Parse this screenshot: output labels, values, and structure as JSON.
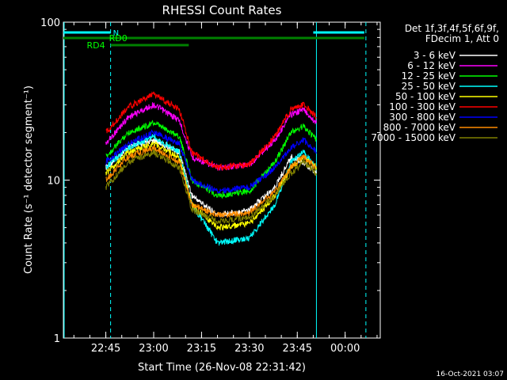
{
  "chart_data": {
    "type": "line",
    "title": "RHESSI Count Rates",
    "xlabel": "Start Time (26-Nov-08 22:31:42)",
    "ylabel": "Count Rate (s⁻¹ detector segment⁻¹)",
    "y_scale": "log",
    "ylim": [
      1,
      100
    ],
    "xlim": [
      "22:31:42",
      "00:11:00"
    ],
    "x_ticks": [
      "22:45",
      "23:00",
      "23:15",
      "23:30",
      "23:45",
      "00:00"
    ],
    "y_ticks": [
      "1",
      "10",
      "100"
    ],
    "legend": {
      "header_line1": "Det 1f,3f,4f,5f,6f,9f,",
      "header_line2": "FDecim 1, Att 0",
      "placement": "right"
    },
    "series": [
      {
        "name": "3 - 6 keV",
        "color": "#ffffff",
        "x": [
          "22:45",
          "22:52",
          "23:00",
          "23:08",
          "23:12",
          "23:20",
          "23:30",
          "23:38",
          "23:43",
          "23:47",
          "23:51"
        ],
        "values": [
          12,
          16,
          18,
          15,
          8,
          6,
          6.5,
          9,
          14,
          13,
          11
        ]
      },
      {
        "name": "6 - 12 keV",
        "color": "#ff00ff",
        "x": [
          "22:45",
          "22:52",
          "23:00",
          "23:08",
          "23:12",
          "23:20",
          "23:30",
          "23:38",
          "23:43",
          "23:47",
          "23:51"
        ],
        "values": [
          17,
          25,
          30,
          24,
          14,
          12,
          12.5,
          18,
          26,
          28,
          23
        ]
      },
      {
        "name": "12 - 25 keV",
        "color": "#00ff00",
        "x": [
          "22:45",
          "22:52",
          "23:00",
          "23:08",
          "23:12",
          "23:20",
          "23:30",
          "23:38",
          "23:43",
          "23:47",
          "23:51"
        ],
        "values": [
          14,
          20,
          23,
          19,
          10,
          8,
          8.5,
          13,
          20,
          22,
          18
        ]
      },
      {
        "name": "25 - 50 keV",
        "color": "#00ffff",
        "x": [
          "22:45",
          "22:52",
          "23:00",
          "23:08",
          "23:12",
          "23:20",
          "23:30",
          "23:38",
          "23:43",
          "23:47",
          "23:51"
        ],
        "values": [
          12,
          16,
          19,
          15,
          7,
          4,
          4.3,
          7,
          13,
          15,
          12
        ]
      },
      {
        "name": "50 - 100 keV",
        "color": "#ffff00",
        "x": [
          "22:45",
          "22:52",
          "23:00",
          "23:08",
          "23:12",
          "23:20",
          "23:30",
          "23:38",
          "23:43",
          "23:47",
          "23:51"
        ],
        "values": [
          11,
          15,
          17,
          14,
          7,
          5,
          5.3,
          8,
          12,
          14,
          12
        ]
      },
      {
        "name": "100 - 300 keV",
        "color": "#ff0000",
        "x": [
          "22:45",
          "22:52",
          "23:00",
          "23:08",
          "23:12",
          "23:20",
          "23:30",
          "23:38",
          "23:43",
          "23:47",
          "23:51"
        ],
        "values": [
          20,
          29,
          35,
          28,
          15,
          12,
          12.5,
          19,
          28,
          30,
          25
        ]
      },
      {
        "name": "300 - 800 keV",
        "color": "#0000ff",
        "x": [
          "22:45",
          "22:52",
          "23:00",
          "23:08",
          "23:12",
          "23:20",
          "23:30",
          "23:38",
          "23:43",
          "23:47",
          "23:51"
        ],
        "values": [
          13,
          17,
          20,
          17,
          10,
          8.5,
          9,
          12,
          16,
          18,
          15
        ]
      },
      {
        "name": "800 - 7000 keV",
        "color": "#ff8c00",
        "x": [
          "22:45",
          "22:52",
          "23:00",
          "23:08",
          "23:12",
          "23:20",
          "23:30",
          "23:38",
          "23:43",
          "23:47",
          "23:51"
        ],
        "values": [
          10,
          14,
          16,
          13,
          7,
          6,
          6.2,
          8.5,
          12,
          14,
          12
        ]
      },
      {
        "name": "7000 - 15000 keV",
        "color": "#808000",
        "x": [
          "22:45",
          "22:52",
          "23:00",
          "23:08",
          "23:12",
          "23:20",
          "23:30",
          "23:38",
          "23:43",
          "23:47",
          "23:51"
        ],
        "values": [
          9,
          13,
          15,
          12,
          6.5,
          5.5,
          5.8,
          8,
          11,
          13,
          11
        ]
      }
    ],
    "attenuator_bars": [
      {
        "label": "N",
        "color": "#00ffff",
        "x_start": "22:31:42",
        "x_end": "22:46:30",
        "level": "top"
      },
      {
        "label": "N",
        "color": "#00ffff",
        "x_start": "23:50",
        "x_end": "00:06",
        "level": "top"
      },
      {
        "label": "RD0",
        "color": "#008000",
        "x_start": "22:31:42",
        "x_end": "00:06",
        "level": "middle"
      },
      {
        "label": "RD4",
        "color": "#008000",
        "x_start": "22:46:30",
        "x_end": "23:11",
        "level": "bottom"
      }
    ],
    "vertical_markers": [
      {
        "x": "22:46:30",
        "style": "dashed",
        "color": "#00ffff"
      },
      {
        "x": "23:51:00",
        "style": "solid",
        "color": "#00ffff"
      },
      {
        "x": "00:06:30",
        "style": "dashed",
        "color": "#00ffff"
      }
    ],
    "footer_date": "16-Oct-2021 03:07"
  }
}
